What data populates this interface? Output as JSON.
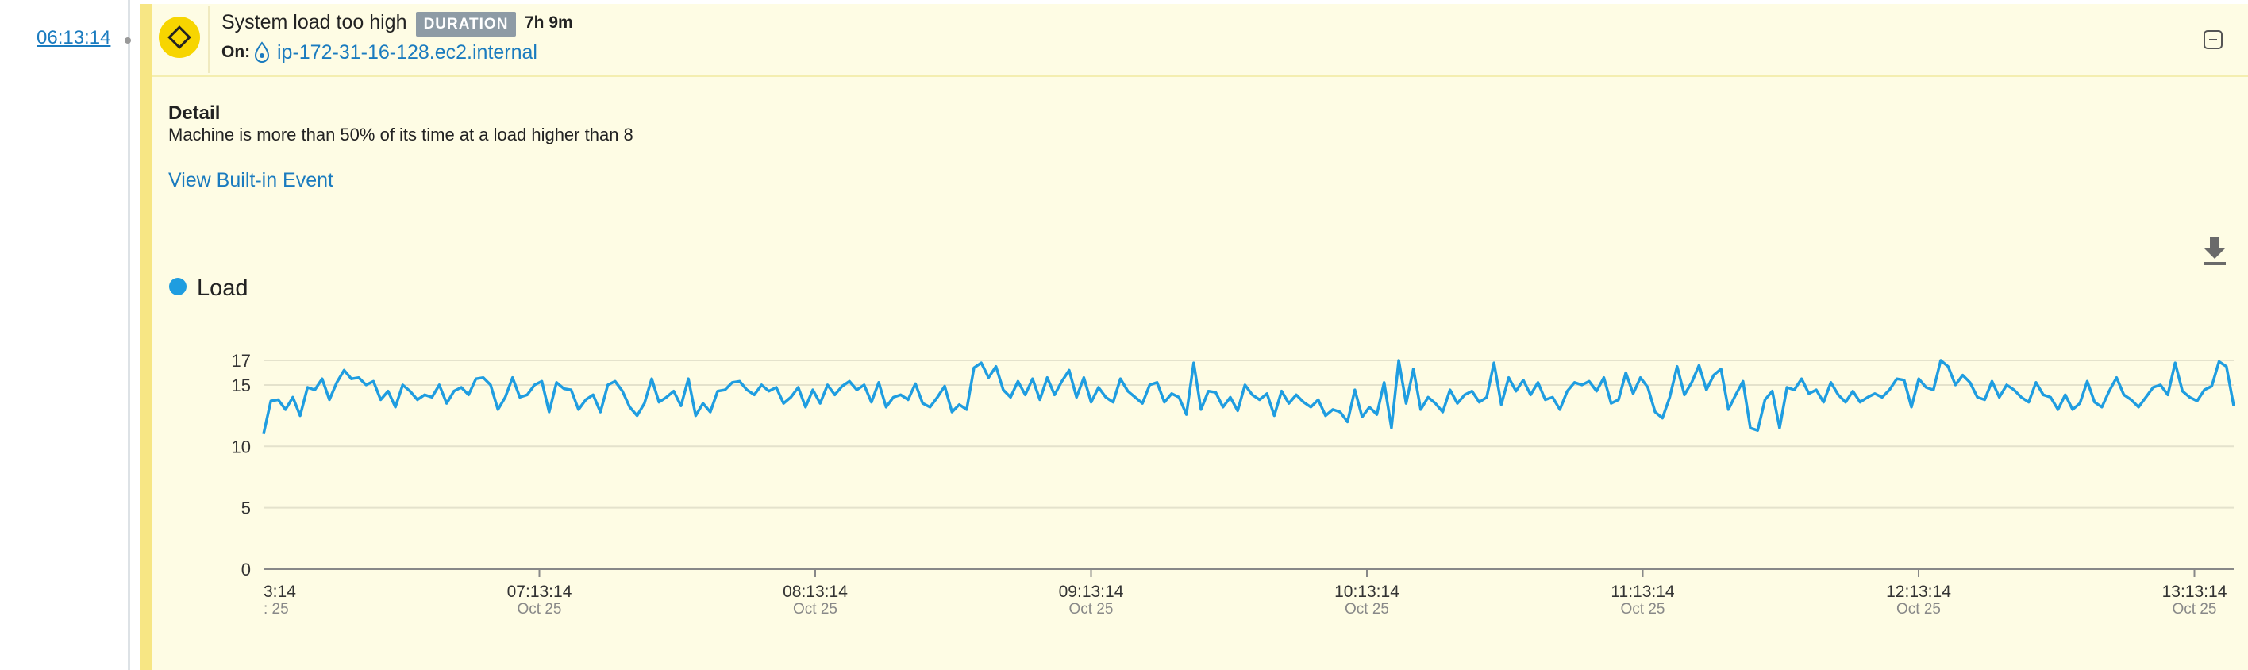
{
  "timeline": {
    "time": "06:13:14"
  },
  "event": {
    "title": "System load too high",
    "badge": "DURATION",
    "duration": "7h 9m",
    "on_label": "On:",
    "host": "ip-172-31-16-128.ec2.internal",
    "detail_heading": "Detail",
    "detail_text": "Machine is more than 50% of its time at a load higher than 8",
    "link": "View Built-in Event"
  },
  "chart_data": {
    "type": "line",
    "series": [
      {
        "name": "Load",
        "color": "#1f9de0",
        "values": [
          11,
          13.7,
          13.8,
          13,
          14,
          12.5,
          14.8,
          14.6,
          15.5,
          13.8,
          15.2,
          16.2,
          15.5,
          15.6,
          15,
          15.3,
          13.8,
          14.5,
          13.2,
          15,
          14.5,
          13.8,
          14.2,
          14,
          15,
          13.5,
          14.5,
          14.8,
          14.2,
          15.5,
          15.6,
          15,
          13,
          14,
          15.6,
          14,
          14.2,
          15,
          15.3,
          12.8,
          15.2,
          14.7,
          14.6,
          13,
          13.8,
          14.2,
          12.8,
          15,
          15.3,
          14.5,
          13.2,
          12.5,
          13.5,
          15.5,
          13.6,
          14,
          14.5,
          13.3,
          15.5,
          12.5,
          13.5,
          12.8,
          14.5,
          14.6,
          15.2,
          15.3,
          14.6,
          14.2,
          15,
          14.5,
          14.8,
          13.5,
          14,
          14.8,
          13.2,
          14.6,
          13.5,
          15,
          14.2,
          14.9,
          15.3,
          14.6,
          15,
          13.6,
          15.2,
          13.2,
          14,
          14.2,
          13.8,
          15.1,
          13.5,
          13.2,
          14,
          14.9,
          12.8,
          13.4,
          13,
          16.4,
          16.8,
          15.6,
          16.5,
          14.6,
          14,
          15.3,
          14.2,
          15.5,
          13.8,
          15.6,
          14.2,
          15.3,
          16.2,
          14,
          15.6,
          13.6,
          14.8,
          14,
          13.6,
          15.5,
          14.5,
          14,
          13.5,
          15,
          15.2,
          13.6,
          14.3,
          14,
          12.6,
          16.8,
          13,
          14.5,
          14.4,
          13.2,
          14,
          12.9,
          15,
          14.2,
          13.8,
          14.3,
          12.5,
          14.5,
          13.5,
          14.2,
          13.6,
          13.2,
          13.8,
          12.5,
          13,
          12.8,
          12,
          14.6,
          12.4,
          13.2,
          12.6,
          15.2,
          11.5,
          17,
          13.5,
          16.3,
          13,
          14,
          13.5,
          12.8,
          14.6,
          13.5,
          14.2,
          14.5,
          13.6,
          14,
          16.8,
          13.4,
          15.6,
          14.5,
          15.4,
          14.2,
          15.2,
          13.8,
          14,
          13,
          14.5,
          15.2,
          15,
          15.3,
          14.5,
          15.6,
          13.5,
          13.8,
          16,
          14.3,
          15.6,
          14.8,
          12.8,
          12.3,
          14,
          16.5,
          14.2,
          15.2,
          16.6,
          14.6,
          15.8,
          16.3,
          13,
          14.2,
          15.3,
          11.5,
          11.3,
          13.8,
          14.5,
          11.5,
          14.8,
          14.6,
          15.5,
          14.3,
          14.6,
          13.6,
          15.2,
          14.2,
          13.6,
          14.5,
          13.6,
          14,
          14.3,
          14,
          14.6,
          15.5,
          15.4,
          13.2,
          15.5,
          14.8,
          14.6,
          17,
          16.5,
          15,
          15.8,
          15.2,
          14,
          13.8,
          15.3,
          14,
          15,
          14.6,
          14,
          13.6,
          15.2,
          14.2,
          14,
          13,
          14.2,
          13,
          13.5,
          15.3,
          13.6,
          13.2,
          14.5,
          15.6,
          14.2,
          13.8,
          13.2,
          14,
          14.8,
          15,
          14.2,
          16.8,
          14.5,
          14,
          13.7,
          14.6,
          14.9,
          16.9,
          16.5,
          13.3
        ]
      }
    ],
    "ylim": [
      0,
      17
    ],
    "yticks": [
      0,
      5,
      10,
      15,
      17
    ],
    "grid": true,
    "x_labels": [
      {
        "time": "3:14",
        "date": ": 25"
      },
      {
        "time": "07:13:14",
        "date": "Oct 25"
      },
      {
        "time": "08:13:14",
        "date": "Oct 25"
      },
      {
        "time": "09:13:14",
        "date": "Oct 25"
      },
      {
        "time": "10:13:14",
        "date": "Oct 25"
      },
      {
        "time": "11:13:14",
        "date": "Oct 25"
      },
      {
        "time": "12:13:14",
        "date": "Oct 25"
      },
      {
        "time": "13:13:14",
        "date": "Oct 25"
      }
    ]
  }
}
